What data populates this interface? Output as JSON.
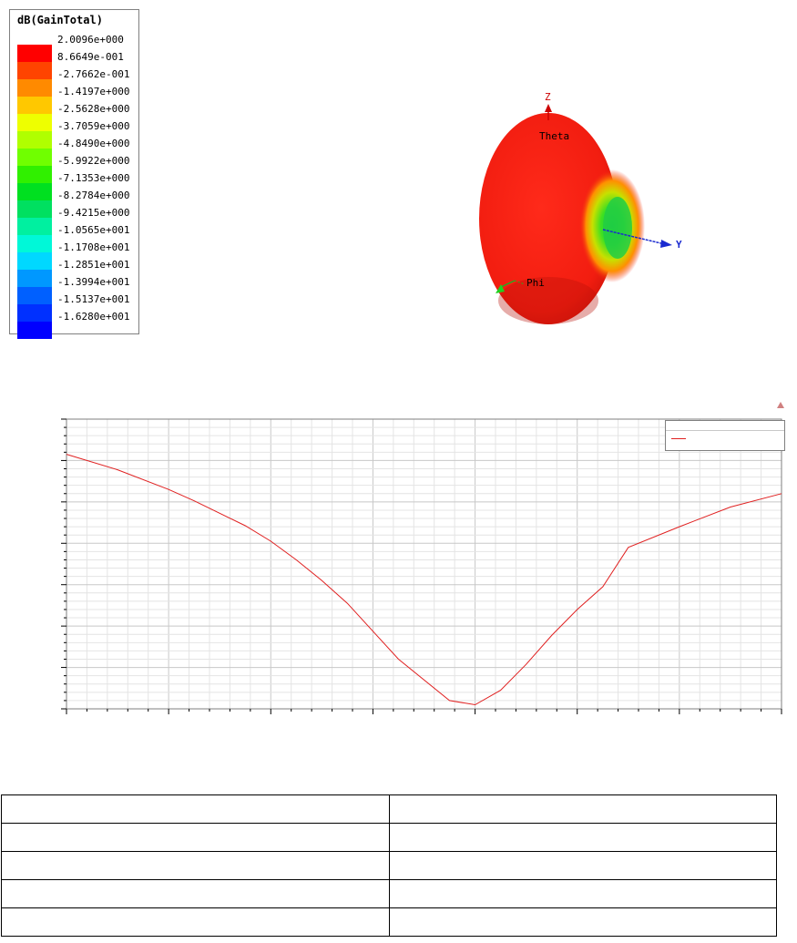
{
  "legend": {
    "title": "dB(GainTotal)",
    "entries": [
      {
        "label": "2.0096e+000",
        "color": "#ff0000"
      },
      {
        "label": "8.6649e-001",
        "color": "#ff4400"
      },
      {
        "label": "-2.7662e-001",
        "color": "#ff8a00"
      },
      {
        "label": "-1.4197e+000",
        "color": "#ffc800"
      },
      {
        "label": "-2.5628e+000",
        "color": "#eeff00"
      },
      {
        "label": "-3.7059e+000",
        "color": "#b0ff00"
      },
      {
        "label": "-4.8490e+000",
        "color": "#70ff00"
      },
      {
        "label": "-5.9922e+000",
        "color": "#30f000"
      },
      {
        "label": "-7.1353e+000",
        "color": "#00e020"
      },
      {
        "label": "-8.2784e+000",
        "color": "#00e060"
      },
      {
        "label": "-9.4215e+000",
        "color": "#00f0a0"
      },
      {
        "label": "-1.0565e+001",
        "color": "#00f8d8"
      },
      {
        "label": "-1.1708e+001",
        "color": "#00d8ff"
      },
      {
        "label": "-1.2851e+001",
        "color": "#0098ff"
      },
      {
        "label": "-1.3994e+001",
        "color": "#0060ff"
      },
      {
        "label": "-1.5137e+001",
        "color": "#0030ff"
      },
      {
        "label": "-1.6280e+001",
        "color": "#0000ff"
      }
    ]
  },
  "pattern3d": {
    "axis_z": "Z",
    "axis_y": "Y",
    "label_theta": "Theta",
    "label_phi": "Phi"
  },
  "chart_data": {
    "type": "line",
    "title": "",
    "xlabel": "",
    "ylabel": "",
    "grid": true,
    "legend_position": "top-right",
    "xlim": [
      0,
      28
    ],
    "ylim": [
      0,
      14
    ],
    "series": [
      {
        "color": "#e02020",
        "x": [
          0,
          2,
          4,
          5,
          7,
          8,
          9,
          10,
          11,
          12,
          13,
          15,
          16,
          17,
          18,
          19,
          20,
          21,
          22,
          24,
          26,
          28
        ],
        "y": [
          12.3,
          11.55,
          10.6,
          10.05,
          8.85,
          8.1,
          7.2,
          6.2,
          5.1,
          3.75,
          2.4,
          0.4,
          0.2,
          0.9,
          2.15,
          3.55,
          4.8,
          5.9,
          7.8,
          8.8,
          9.75,
          10.4
        ]
      }
    ]
  },
  "table": {
    "rows": [
      [
        "",
        ""
      ],
      [
        "",
        ""
      ],
      [
        "",
        ""
      ],
      [
        "",
        ""
      ],
      [
        "",
        ""
      ]
    ]
  }
}
